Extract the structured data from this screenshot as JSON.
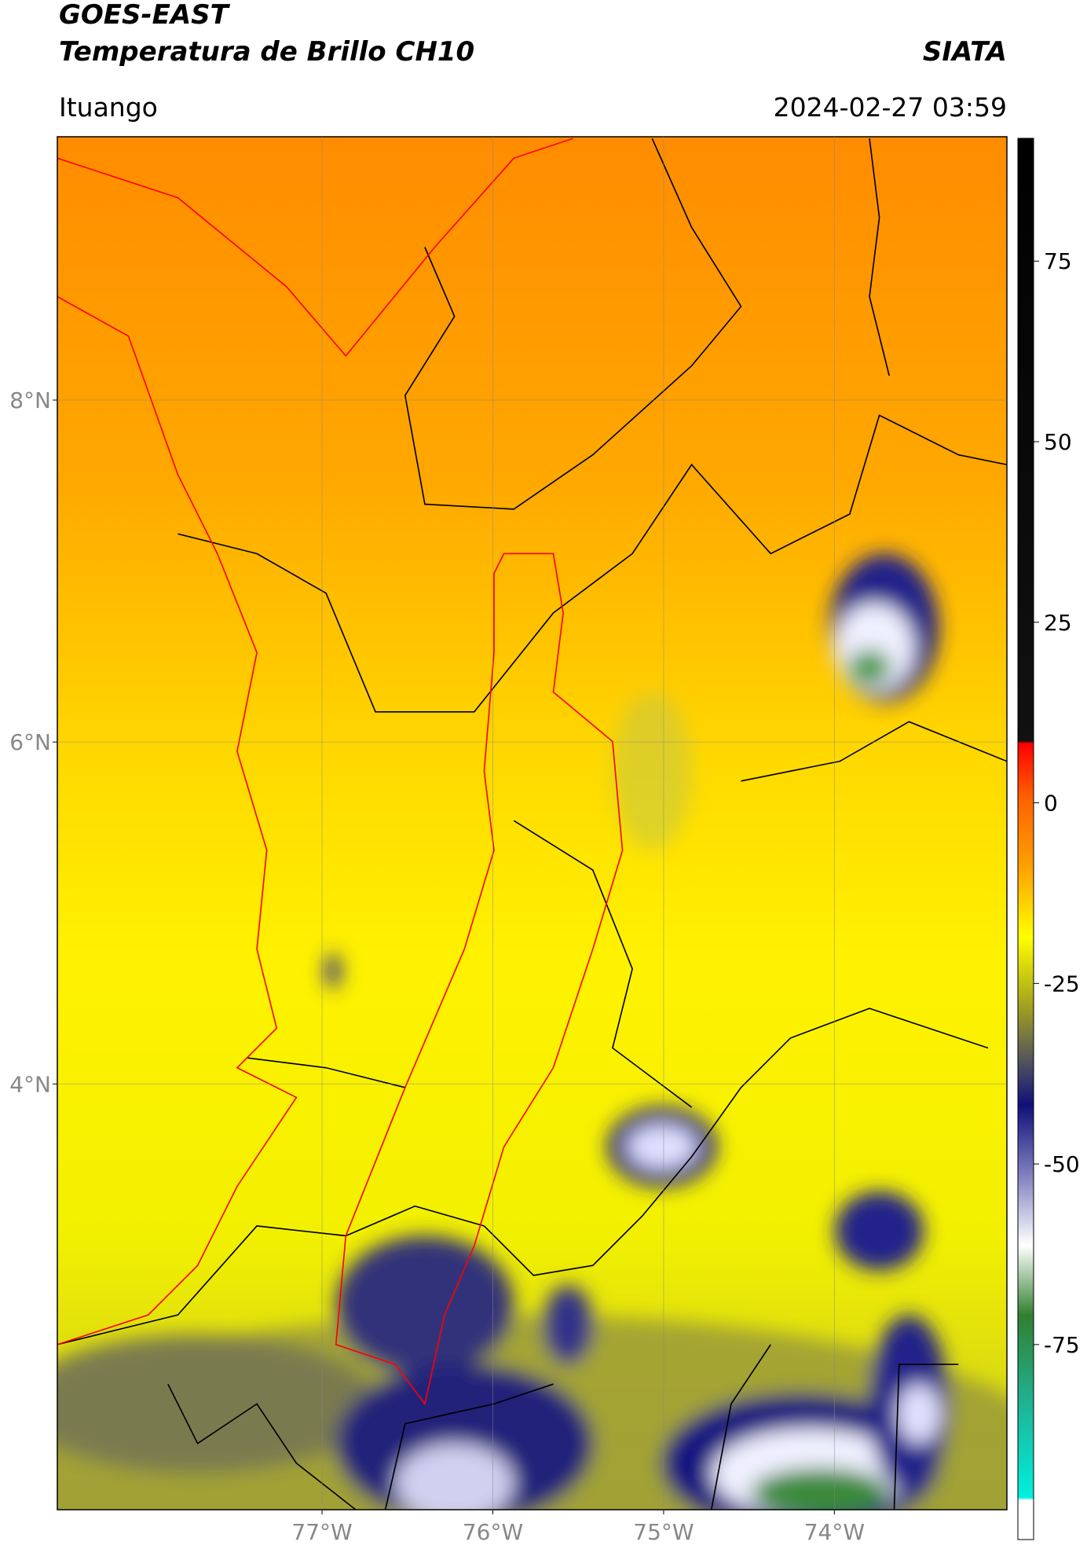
{
  "header": {
    "title": "GOES-EAST",
    "subtitle": "Temperatura de Brillo CH10",
    "source": "SIATA",
    "location": "Ituango",
    "datetime": "2024-02-27 03:59"
  },
  "map": {
    "lat_lim": [
      1.51,
      9.54
    ],
    "lon_lim": [
      -78.55,
      -72.99
    ],
    "lat_ticks": [
      {
        "value": 8,
        "label": "8°N"
      },
      {
        "value": 6,
        "label": "6°N"
      },
      {
        "value": 4,
        "label": "4°N"
      }
    ],
    "lon_ticks": [
      {
        "value": -77,
        "label": "77°W"
      },
      {
        "value": -76,
        "label": "76°W"
      },
      {
        "value": -75,
        "label": "75°W"
      },
      {
        "value": -74,
        "label": "74°W"
      }
    ],
    "grid": true
  },
  "colorbar": {
    "lim": [
      -102,
      92
    ],
    "ticks": [
      75,
      50,
      25,
      0,
      -25,
      -50,
      -75
    ]
  }
}
